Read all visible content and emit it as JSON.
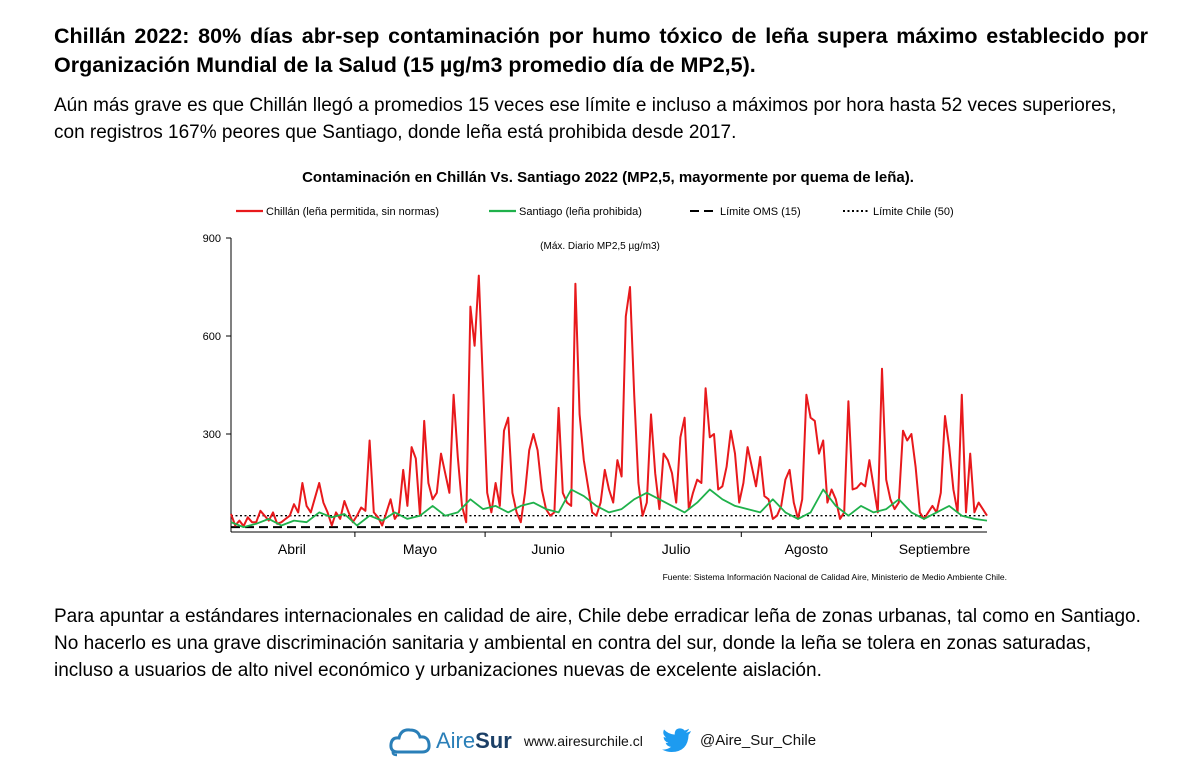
{
  "headline": "Chillán 2022: 80% días abr-sep contaminación por humo tóxico de leña supera máximo establecido por Organización Mundial de la Salud (15 µg/m3 promedio día de MP2,5).",
  "lead": "Aún más grave es que Chillán llegó a promedios 15 veces ese límite e incluso a máximos por hora hasta 52 veces superiores, con registros 167% peores que Santiago, donde leña está prohibida desde 2017.",
  "closing": "Para apuntar a estándares internacionales en calidad de aire, Chile debe erradicar leña de zonas urbanas, tal como en Santiago. No hacerlo es una grave discriminación sanitaria y ambiental en contra del sur, donde la leña se tolera en zonas saturadas, incluso a usuarios de alto nivel económico y urbanizaciones nuevas de excelente aislación.",
  "footer": {
    "brand_light": "Aire",
    "brand_bold": "Sur",
    "website": "www.airesurchile.cl",
    "twitter_handle": "@Aire_Sur_Chile",
    "brand_icon": "cloud-logo-icon",
    "social_icon": "twitter-bird-icon"
  },
  "colors": {
    "chillan": "#e8191c",
    "santiago": "#1fb14b",
    "oms": "#000000",
    "chile": "#000000",
    "brand": "#2a7fb8",
    "twitter": "#1d9bf0"
  },
  "chart_data": {
    "type": "line",
    "title": "Contaminación en Chillán Vs. Santiago 2022 (MP2,5, mayormente por quema de leña).",
    "subtitle": "(Máx. Diario MP2,5 µg/m3)",
    "source": "Fuente: Sistema Información Nacional de Calidad Aire, Ministerio de Medio Ambiente Chile.",
    "legend_position": "top",
    "grid": false,
    "ylim": [
      0,
      900
    ],
    "yticks": [
      900,
      600,
      300
    ],
    "x_range": [
      1,
      181
    ],
    "x_unit": "day (1 = 1 de abril 2022)",
    "x_month_labels": [
      {
        "label": "Abril",
        "x": 15.5
      },
      {
        "label": "Mayo",
        "x": 46
      },
      {
        "label": "Junio",
        "x": 76.5
      },
      {
        "label": "Julio",
        "x": 107
      },
      {
        "label": "Agosto",
        "x": 138
      },
      {
        "label": "Septiembre",
        "x": 168.5
      }
    ],
    "x_month_ticks": [
      30.5,
      61.5,
      91.5,
      122.5,
      153.5
    ],
    "reference_lines": [
      {
        "name": "Límite OMS (15)",
        "value": 15,
        "style": "dashed"
      },
      {
        "name": "Límite Chile (50)",
        "value": 50,
        "style": "dotted"
      }
    ],
    "series": [
      {
        "name": "Chillán (leña permitida, sin normas)",
        "style": "solid",
        "points": [
          [
            1,
            55
          ],
          [
            2,
            20
          ],
          [
            3,
            35
          ],
          [
            4,
            18
          ],
          [
            5,
            45
          ],
          [
            6,
            30
          ],
          [
            7,
            30
          ],
          [
            8,
            65
          ],
          [
            9,
            50
          ],
          [
            10,
            35
          ],
          [
            11,
            60
          ],
          [
            12,
            25
          ],
          [
            13,
            30
          ],
          [
            14,
            40
          ],
          [
            15,
            50
          ],
          [
            16,
            85
          ],
          [
            17,
            60
          ],
          [
            18,
            150
          ],
          [
            19,
            80
          ],
          [
            20,
            60
          ],
          [
            21,
            105
          ],
          [
            22,
            150
          ],
          [
            23,
            90
          ],
          [
            24,
            60
          ],
          [
            25,
            20
          ],
          [
            26,
            60
          ],
          [
            27,
            40
          ],
          [
            28,
            95
          ],
          [
            29,
            60
          ],
          [
            30,
            30
          ],
          [
            31,
            50
          ],
          [
            32,
            75
          ],
          [
            33,
            65
          ],
          [
            34,
            280
          ],
          [
            35,
            60
          ],
          [
            36,
            45
          ],
          [
            37,
            20
          ],
          [
            38,
            60
          ],
          [
            39,
            100
          ],
          [
            40,
            40
          ],
          [
            41,
            60
          ],
          [
            42,
            190
          ],
          [
            43,
            80
          ],
          [
            44,
            260
          ],
          [
            45,
            225
          ],
          [
            46,
            50
          ],
          [
            47,
            340
          ],
          [
            48,
            150
          ],
          [
            49,
            100
          ],
          [
            50,
            120
          ],
          [
            51,
            240
          ],
          [
            52,
            180
          ],
          [
            53,
            120
          ],
          [
            54,
            420
          ],
          [
            55,
            230
          ],
          [
            56,
            80
          ],
          [
            57,
            30
          ],
          [
            58,
            690
          ],
          [
            59,
            570
          ],
          [
            60,
            785
          ],
          [
            61,
            450
          ],
          [
            62,
            120
          ],
          [
            63,
            60
          ],
          [
            64,
            150
          ],
          [
            65,
            80
          ],
          [
            66,
            310
          ],
          [
            67,
            350
          ],
          [
            68,
            120
          ],
          [
            69,
            60
          ],
          [
            70,
            30
          ],
          [
            71,
            120
          ],
          [
            72,
            250
          ],
          [
            73,
            300
          ],
          [
            74,
            250
          ],
          [
            75,
            130
          ],
          [
            76,
            70
          ],
          [
            77,
            50
          ],
          [
            78,
            60
          ],
          [
            79,
            380
          ],
          [
            80,
            120
          ],
          [
            81,
            90
          ],
          [
            82,
            80
          ],
          [
            83,
            760
          ],
          [
            84,
            360
          ],
          [
            85,
            220
          ],
          [
            86,
            140
          ],
          [
            87,
            60
          ],
          [
            88,
            50
          ],
          [
            89,
            90
          ],
          [
            90,
            190
          ],
          [
            91,
            130
          ],
          [
            92,
            90
          ],
          [
            93,
            220
          ],
          [
            94,
            170
          ],
          [
            95,
            660
          ],
          [
            96,
            750
          ],
          [
            97,
            420
          ],
          [
            98,
            150
          ],
          [
            99,
            50
          ],
          [
            100,
            90
          ],
          [
            101,
            360
          ],
          [
            102,
            180
          ],
          [
            103,
            70
          ],
          [
            104,
            240
          ],
          [
            105,
            220
          ],
          [
            106,
            180
          ],
          [
            107,
            90
          ],
          [
            108,
            290
          ],
          [
            109,
            350
          ],
          [
            110,
            70
          ],
          [
            111,
            120
          ],
          [
            112,
            160
          ],
          [
            113,
            150
          ],
          [
            114,
            440
          ],
          [
            115,
            290
          ],
          [
            116,
            300
          ],
          [
            117,
            130
          ],
          [
            118,
            140
          ],
          [
            119,
            200
          ],
          [
            120,
            310
          ],
          [
            121,
            240
          ],
          [
            122,
            90
          ],
          [
            123,
            150
          ],
          [
            124,
            260
          ],
          [
            125,
            200
          ],
          [
            126,
            140
          ],
          [
            127,
            230
          ],
          [
            128,
            110
          ],
          [
            129,
            100
          ],
          [
            130,
            40
          ],
          [
            131,
            50
          ],
          [
            132,
            80
          ],
          [
            133,
            160
          ],
          [
            134,
            190
          ],
          [
            135,
            90
          ],
          [
            136,
            40
          ],
          [
            137,
            100
          ],
          [
            138,
            420
          ],
          [
            139,
            350
          ],
          [
            140,
            340
          ],
          [
            141,
            240
          ],
          [
            142,
            280
          ],
          [
            143,
            90
          ],
          [
            144,
            130
          ],
          [
            145,
            100
          ],
          [
            146,
            40
          ],
          [
            147,
            60
          ],
          [
            148,
            400
          ],
          [
            149,
            130
          ],
          [
            150,
            135
          ],
          [
            151,
            150
          ],
          [
            152,
            140
          ],
          [
            153,
            220
          ],
          [
            154,
            140
          ],
          [
            155,
            60
          ],
          [
            156,
            500
          ],
          [
            157,
            160
          ],
          [
            158,
            100
          ],
          [
            159,
            70
          ],
          [
            160,
            90
          ],
          [
            161,
            310
          ],
          [
            162,
            280
          ],
          [
            163,
            300
          ],
          [
            164,
            200
          ],
          [
            165,
            60
          ],
          [
            166,
            40
          ],
          [
            167,
            60
          ],
          [
            168,
            80
          ],
          [
            169,
            60
          ],
          [
            170,
            120
          ],
          [
            171,
            355
          ],
          [
            172,
            260
          ],
          [
            173,
            130
          ],
          [
            174,
            60
          ],
          [
            175,
            420
          ],
          [
            176,
            60
          ],
          [
            177,
            240
          ],
          [
            178,
            60
          ],
          [
            179,
            90
          ],
          [
            180,
            70
          ],
          [
            181,
            50
          ]
        ]
      },
      {
        "name": "Santiago (leña prohibida)",
        "style": "solid",
        "points": [
          [
            1,
            30
          ],
          [
            4,
            15
          ],
          [
            7,
            25
          ],
          [
            10,
            40
          ],
          [
            13,
            20
          ],
          [
            16,
            35
          ],
          [
            19,
            30
          ],
          [
            22,
            60
          ],
          [
            25,
            45
          ],
          [
            28,
            55
          ],
          [
            31,
            20
          ],
          [
            34,
            50
          ],
          [
            37,
            35
          ],
          [
            40,
            60
          ],
          [
            43,
            40
          ],
          [
            46,
            50
          ],
          [
            49,
            80
          ],
          [
            52,
            50
          ],
          [
            55,
            60
          ],
          [
            58,
            100
          ],
          [
            61,
            70
          ],
          [
            64,
            80
          ],
          [
            67,
            60
          ],
          [
            70,
            80
          ],
          [
            73,
            90
          ],
          [
            76,
            70
          ],
          [
            79,
            60
          ],
          [
            82,
            130
          ],
          [
            85,
            110
          ],
          [
            88,
            80
          ],
          [
            91,
            60
          ],
          [
            94,
            70
          ],
          [
            97,
            100
          ],
          [
            100,
            120
          ],
          [
            103,
            100
          ],
          [
            106,
            80
          ],
          [
            109,
            60
          ],
          [
            112,
            90
          ],
          [
            115,
            130
          ],
          [
            118,
            100
          ],
          [
            121,
            80
          ],
          [
            124,
            70
          ],
          [
            127,
            60
          ],
          [
            130,
            100
          ],
          [
            133,
            60
          ],
          [
            136,
            40
          ],
          [
            139,
            60
          ],
          [
            142,
            130
          ],
          [
            145,
            80
          ],
          [
            148,
            50
          ],
          [
            151,
            80
          ],
          [
            154,
            60
          ],
          [
            157,
            70
          ],
          [
            160,
            100
          ],
          [
            163,
            60
          ],
          [
            166,
            40
          ],
          [
            169,
            60
          ],
          [
            172,
            80
          ],
          [
            175,
            50
          ],
          [
            178,
            40
          ],
          [
            181,
            35
          ]
        ]
      }
    ]
  }
}
